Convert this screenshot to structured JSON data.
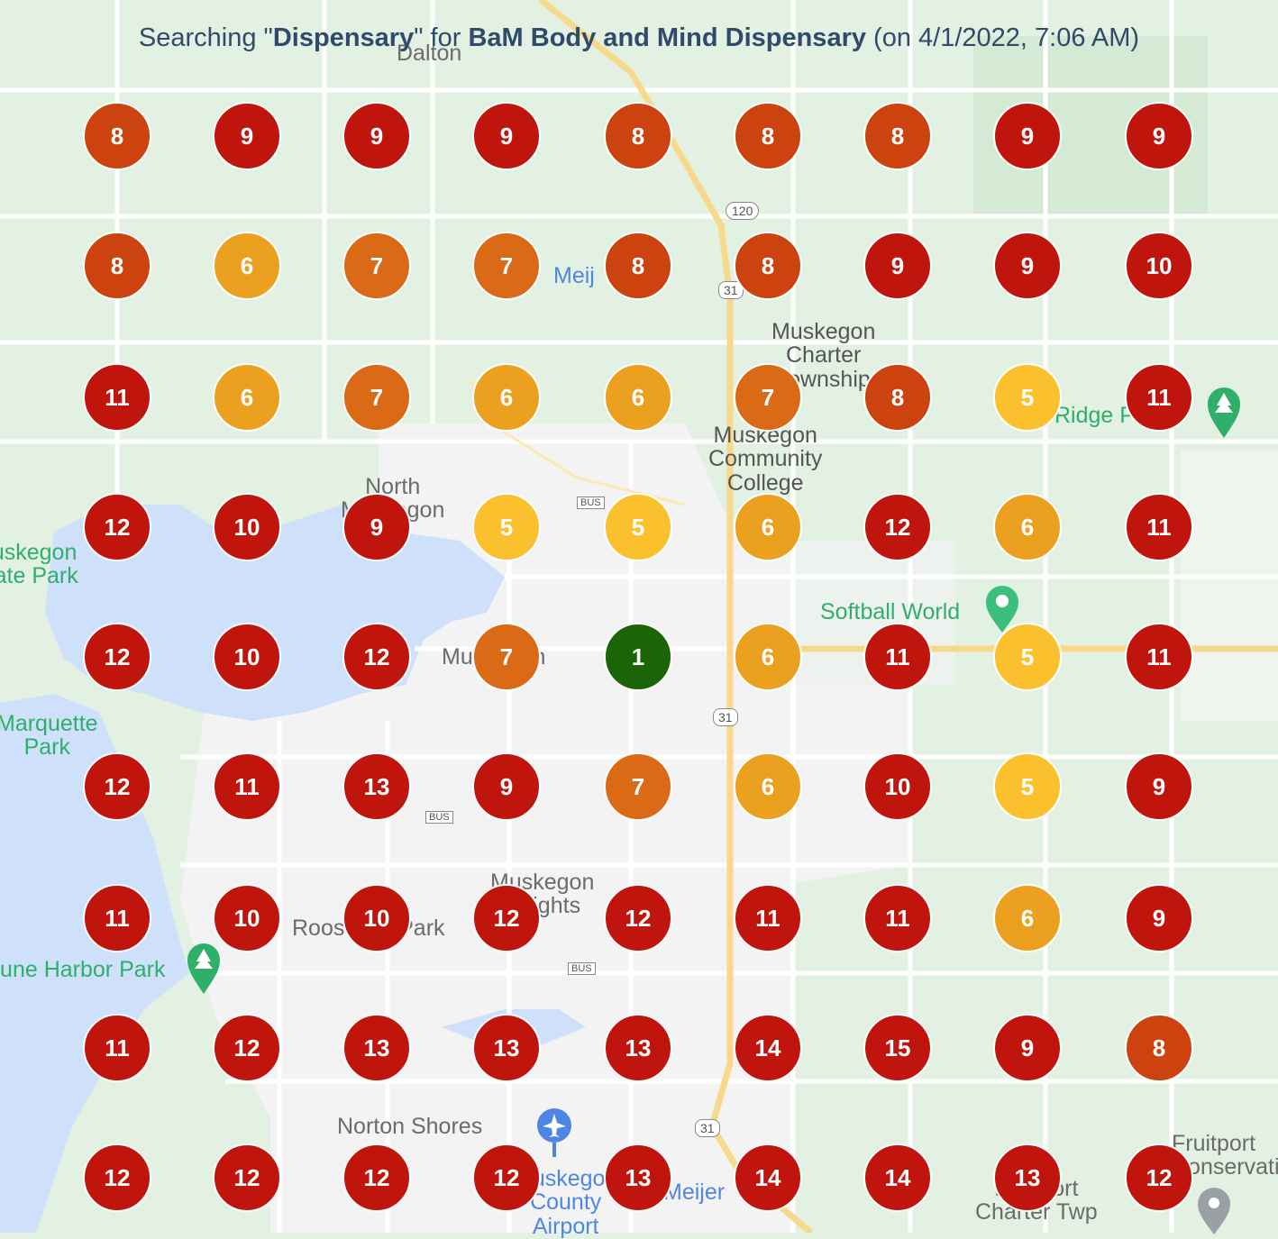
{
  "title": {
    "prefix": "Searching \"",
    "keyword": "Dispensary",
    "middle": "\" for ",
    "business": "BaM Body and Mind Dispensary",
    "suffix": " (on 4/1/2022, 7:06 AM)"
  },
  "colors": {
    "rank_1": "#1b6507",
    "rank_5": "#fbc02d",
    "rank_6": "#eca020",
    "rank_7": "#db6a17",
    "rank_8": "#cc4310",
    "rank_9_plus": "#bf150c",
    "water": "#cfe0fb",
    "land_green": "#e3f1e3",
    "urban": "#f3f3f3"
  },
  "grid_ranks": [
    [
      8,
      9,
      9,
      9,
      8,
      8,
      8,
      9,
      9
    ],
    [
      8,
      6,
      7,
      7,
      8,
      8,
      9,
      9,
      10
    ],
    [
      11,
      6,
      7,
      6,
      6,
      7,
      8,
      5,
      11
    ],
    [
      12,
      10,
      9,
      5,
      5,
      6,
      12,
      6,
      11
    ],
    [
      12,
      10,
      12,
      7,
      1,
      6,
      11,
      5,
      11
    ],
    [
      12,
      11,
      13,
      9,
      7,
      6,
      10,
      5,
      9
    ],
    [
      11,
      10,
      10,
      12,
      12,
      11,
      11,
      6,
      9
    ],
    [
      11,
      12,
      13,
      13,
      13,
      14,
      15,
      9,
      8
    ],
    [
      12,
      12,
      12,
      12,
      13,
      14,
      14,
      13,
      12
    ]
  ],
  "map_labels": {
    "dalton": "Dalton",
    "meijer_top": "Meij",
    "muskegon_charter": "Muskegon\nCharter\nTownship",
    "muskegon_cc": "Muskegon\nCommunity\nCollege",
    "north_muskegon": "North\nMuskegon",
    "muskegon_state_park": "Muskegon\nState Park",
    "softball_world": "Softball World",
    "ridge_park": "Ridge Park",
    "muskegon": "Muskegon",
    "marquette_park": "Marquette\nPark",
    "muskegon_heights": "Muskegon\nHeights",
    "roosevelt_park": "Roosevelt Park",
    "dune_harbor_park": "Dune Harbor Park",
    "norton_shores": "Norton Shores",
    "county_airport": "Muskegon\nCounty\nAirport",
    "meijer_bottom": "Meijer",
    "fruitport": "Fruitport\nConservation",
    "fruitport_twp": "Fruitport\nCharter Twp"
  },
  "shields": {
    "r120": "120",
    "us31": "31",
    "bus": "BUS"
  }
}
